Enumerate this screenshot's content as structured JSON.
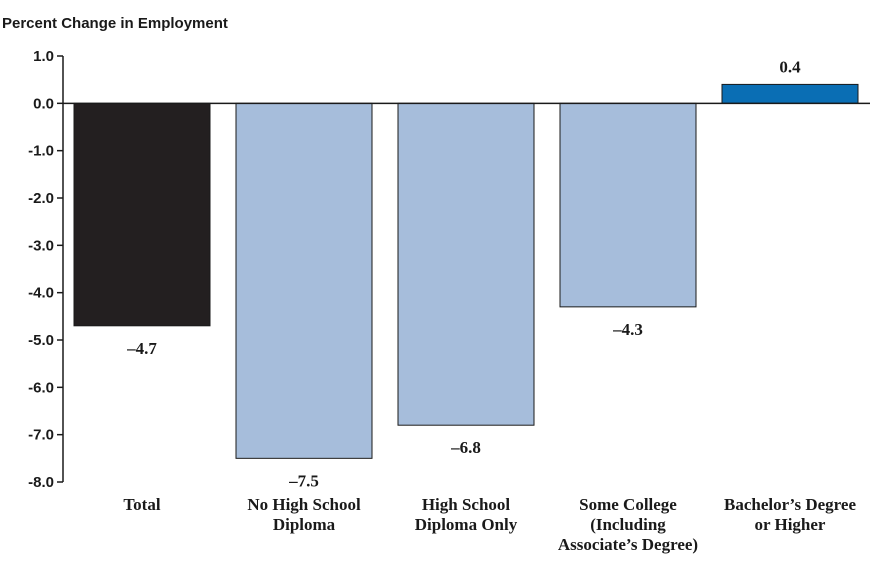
{
  "chart_data": {
    "type": "bar",
    "ylabel": "Percent Change in Employment",
    "ylim": [
      -8.0,
      1.0
    ],
    "yticks": [
      "1.0",
      "0.0",
      "-1.0",
      "-2.0",
      "-3.0",
      "-4.0",
      "-5.0",
      "-6.0",
      "-7.0",
      "-8.0"
    ],
    "ytick_values": [
      1.0,
      0.0,
      -1.0,
      -2.0,
      -3.0,
      -4.0,
      -5.0,
      -6.0,
      -7.0,
      -8.0
    ],
    "categories": [
      [
        "Total"
      ],
      [
        "No High School",
        "Diploma"
      ],
      [
        "High School",
        "Diploma Only"
      ],
      [
        "Some College",
        "(Including",
        "Associate’s Degree)"
      ],
      [
        "Bachelor’s Degree",
        "or Higher"
      ]
    ],
    "values": [
      -4.7,
      -7.5,
      -6.8,
      -4.3,
      0.4
    ],
    "value_labels": [
      "–4.7",
      "–7.5",
      "–6.8",
      "–4.3",
      "0.4"
    ],
    "colors": [
      "#231f20",
      "#a6bddb",
      "#a6bddb",
      "#a6bddb",
      "#0a6eb4"
    ]
  }
}
